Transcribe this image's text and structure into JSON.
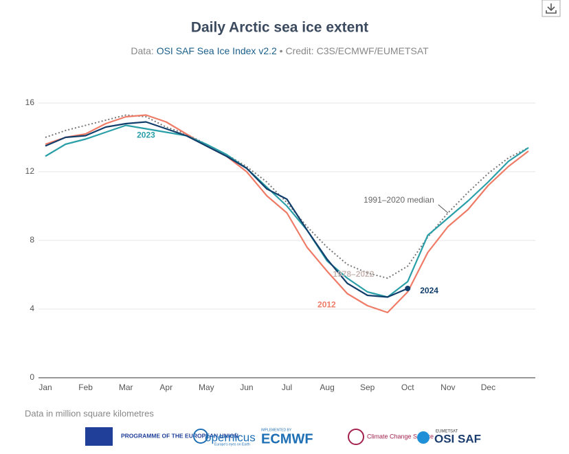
{
  "chart_data": {
    "type": "line",
    "title": "Daily Arctic sea ice extent",
    "subtitle": {
      "prefix": "Data:",
      "link": "OSI SAF Sea Ice Index v2.2",
      "credit": "• Credit: C3S/ECMWF/EUMETSAT"
    },
    "categories": [
      "Jan",
      null,
      "Feb",
      null,
      "Mar",
      null,
      "Apr",
      null,
      "May",
      null,
      "Jun",
      null,
      "Jul",
      null,
      "Aug",
      null,
      "Sep",
      null,
      "Oct",
      null,
      "Nov",
      null,
      "Dec",
      null,
      null
    ],
    "series": [
      {
        "name": "1991–2020 median",
        "color": "#777777",
        "style": "dotted",
        "values": [
          14.0,
          14.4,
          14.7,
          15.0,
          15.3,
          15.2,
          14.6,
          14.2,
          13.6,
          13.0,
          12.3,
          11.4,
          10.2,
          8.8,
          7.6,
          6.6,
          6.1,
          5.8,
          6.5,
          8.2,
          9.6,
          10.8,
          11.9,
          12.8,
          13.4
        ]
      },
      {
        "name": "2012",
        "color": "#ef7b67",
        "style": "solid",
        "values": [
          13.6,
          14.0,
          14.2,
          14.8,
          15.2,
          15.3,
          14.9,
          14.2,
          13.5,
          12.9,
          12.0,
          10.6,
          9.6,
          7.6,
          6.2,
          4.9,
          4.2,
          3.8,
          5.0,
          7.3,
          8.8,
          9.8,
          11.2,
          12.3,
          13.2
        ]
      },
      {
        "name": "2023",
        "color": "#2a9fa8",
        "style": "solid",
        "values": [
          12.9,
          13.6,
          13.9,
          14.3,
          14.7,
          14.5,
          14.3,
          14.1,
          13.6,
          13.0,
          12.2,
          11.1,
          10.0,
          8.6,
          6.8,
          5.8,
          5.0,
          4.7,
          5.6,
          8.3,
          9.3,
          10.3,
          11.4,
          12.6,
          13.4
        ]
      },
      {
        "name": "2024",
        "color": "#123e6b",
        "style": "solid",
        "end_dot": true,
        "values": [
          13.5,
          14.0,
          14.1,
          14.6,
          14.8,
          14.9,
          14.5,
          14.1,
          13.5,
          12.9,
          12.2,
          11.0,
          10.4,
          8.6,
          6.9,
          5.5,
          4.8,
          4.7,
          5.2,
          null,
          null,
          null,
          null,
          null,
          null
        ]
      }
    ],
    "annotation": "1978–2022",
    "ylim": [
      0,
      16
    ],
    "yticks": [
      0,
      4,
      8,
      12,
      16
    ],
    "grid": true,
    "note": "Data in million square kilometres"
  },
  "logos": {
    "eu": "PROGRAMME OF THE EUROPEAN UNION",
    "copernicus": "opernicus",
    "copernicus_sub": "Europe's eyes on Earth",
    "ecmwf_sub": "IMPLEMENTED BY",
    "ecmwf": "ECMWF",
    "c3s": "Climate Change Service",
    "eumetsat": "EUMETSAT",
    "osisaf": "OSI SAF"
  }
}
